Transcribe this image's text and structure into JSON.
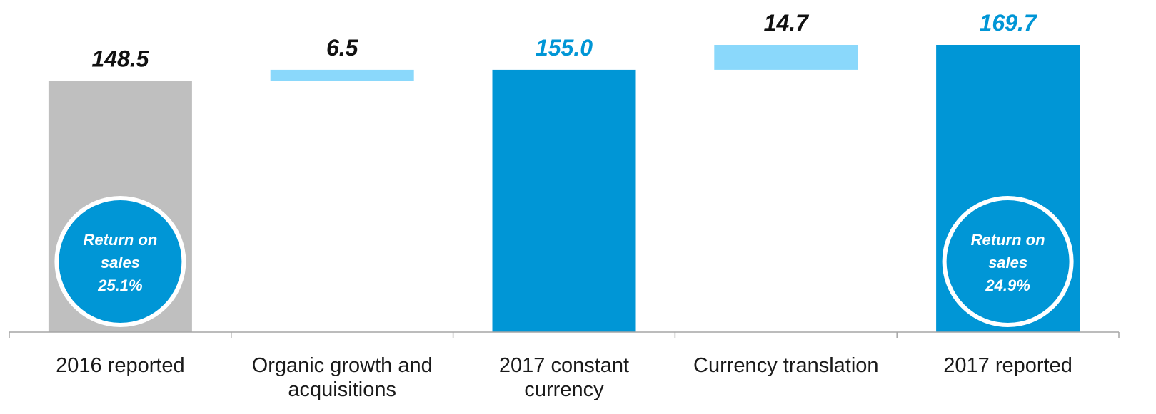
{
  "chart_data": {
    "type": "bar",
    "subtype": "waterfall",
    "title": "",
    "xlabel": "",
    "ylabel": "",
    "categories": [
      "2016 reported",
      "Organic growth and acquisitions",
      "2017 constant currency",
      "Currency translation",
      "2017 reported"
    ],
    "category_lines": [
      [
        "2016 reported"
      ],
      [
        "Organic growth and",
        "acquisitions"
      ],
      [
        "2017 constant",
        "currency"
      ],
      [
        "Currency translation"
      ],
      [
        "2017 reported"
      ]
    ],
    "values": [
      148.5,
      6.5,
      155.0,
      14.7,
      169.7
    ],
    "value_labels": [
      "148.5",
      "6.5",
      "155.0",
      "14.7",
      "169.7"
    ],
    "bar_kinds": [
      "total",
      "increment",
      "total",
      "increment",
      "total"
    ],
    "base_values": [
      0,
      148.5,
      0,
      155.0,
      0
    ],
    "ylim": [
      0,
      169.7
    ],
    "grid": false,
    "legend": "none",
    "colors": {
      "total_2016": "#bfbfbf",
      "total_2017": "#0096d6",
      "increment": "#8ad8fb",
      "label_dark": "#111111",
      "label_blue": "#0096d6",
      "axis": "#a6a6a6",
      "badge_ring": "#ffffff"
    },
    "bar_colors": [
      "#bfbfbf",
      "#8ad8fb",
      "#0096d6",
      "#8ad8fb",
      "#0096d6"
    ],
    "label_colors": [
      "#111111",
      "#111111",
      "#0096d6",
      "#111111",
      "#0096d6"
    ],
    "annotations": [
      {
        "bar_index": 0,
        "lines": [
          "Return on",
          "sales",
          "25.1%"
        ]
      },
      {
        "bar_index": 4,
        "lines": [
          "Return on",
          "sales",
          "24.9%"
        ]
      }
    ]
  }
}
